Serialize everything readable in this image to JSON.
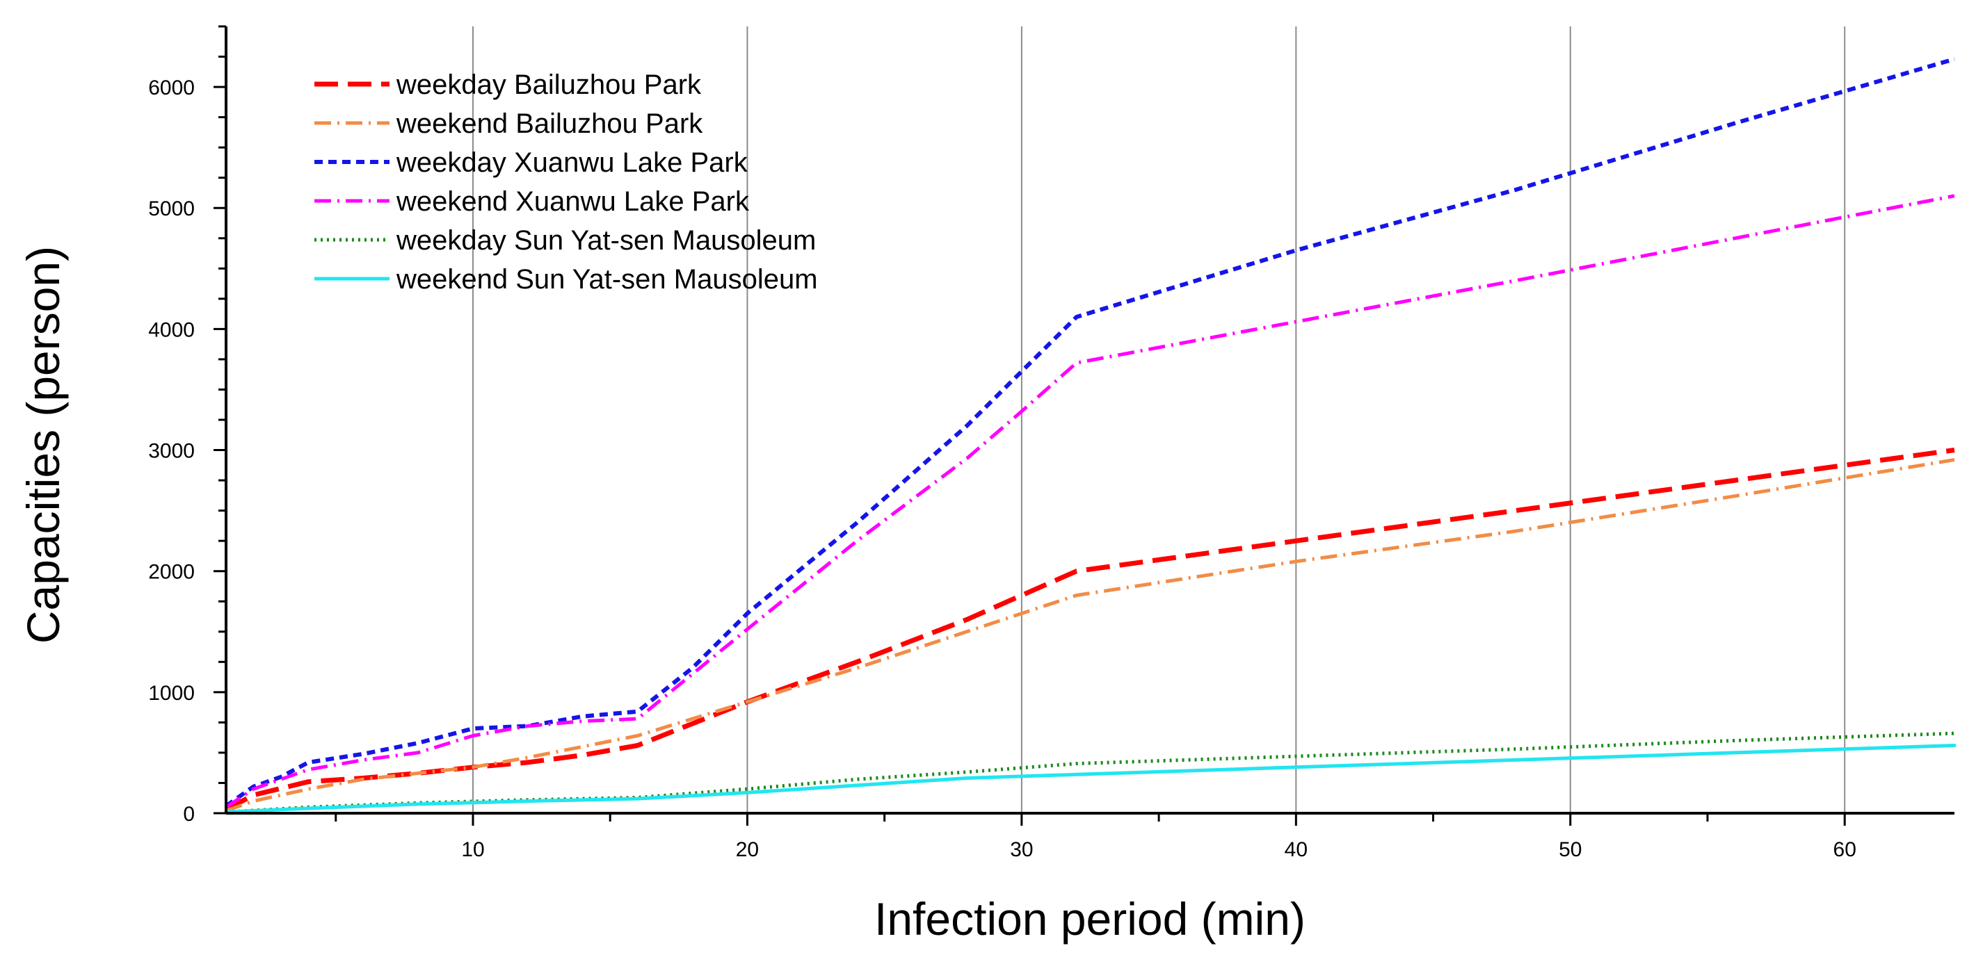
{
  "chart_data": {
    "type": "line",
    "title": "",
    "xlabel": "Infection period (min)",
    "ylabel": "Capacities (person)",
    "xlim": [
      1,
      64
    ],
    "ylim": [
      0,
      6500
    ],
    "xticks": [
      10,
      20,
      30,
      40,
      50,
      60
    ],
    "yticks": [
      0,
      1000,
      2000,
      3000,
      4000,
      5000,
      6000
    ],
    "grid": "vertical",
    "legend_position": "top-left",
    "series": [
      {
        "name": "weekday Bailuzhou Park",
        "color": "#ff0000",
        "style": "dash",
        "x": [
          1,
          2,
          4,
          6,
          8,
          10,
          12,
          14,
          16,
          18,
          20,
          24,
          28,
          30,
          32,
          40,
          48,
          56,
          64
        ],
        "y": [
          30,
          150,
          260,
          290,
          330,
          380,
          420,
          480,
          560,
          740,
          920,
          1250,
          1600,
          1800,
          2000,
          2250,
          2500,
          2750,
          3000
        ]
      },
      {
        "name": "weekend Bailuzhou Park",
        "color": "#f28c45",
        "style": "dashdot",
        "x": [
          1,
          2,
          4,
          6,
          8,
          10,
          12,
          16,
          20,
          24,
          28,
          32,
          40,
          48,
          56,
          64
        ],
        "y": [
          20,
          100,
          200,
          280,
          330,
          380,
          460,
          640,
          920,
          1200,
          1500,
          1800,
          2080,
          2330,
          2620,
          2920
        ]
      },
      {
        "name": "weekday Xuanwu Lake Park",
        "color": "#1515e8",
        "style": "shortdash",
        "x": [
          1,
          2,
          3,
          4,
          6,
          8,
          10,
          12,
          14,
          16,
          18,
          20,
          24,
          28,
          30,
          32,
          40,
          48,
          56,
          64
        ],
        "y": [
          60,
          220,
          300,
          420,
          490,
          580,
          700,
          720,
          800,
          840,
          1200,
          1650,
          2400,
          3200,
          3650,
          4100,
          4650,
          5150,
          5700,
          6230
        ]
      },
      {
        "name": "weekend Xuanwu Lake Park",
        "color": "#ff00ff",
        "style": "dashdot",
        "x": [
          1,
          2,
          3,
          4,
          6,
          8,
          10,
          12,
          14,
          16,
          18,
          20,
          24,
          28,
          30,
          32,
          40,
          48,
          56,
          64
        ],
        "y": [
          50,
          200,
          280,
          360,
          440,
          500,
          640,
          720,
          760,
          780,
          1150,
          1520,
          2250,
          2930,
          3320,
          3720,
          4060,
          4400,
          4750,
          5100
        ]
      },
      {
        "name": "weekday Sun Yat-sen Mausoleum",
        "color": "#1a8a1a",
        "style": "dot",
        "x": [
          1,
          4,
          8,
          12,
          16,
          20,
          24,
          28,
          32,
          40,
          48,
          56,
          64
        ],
        "y": [
          10,
          50,
          85,
          110,
          130,
          200,
          280,
          340,
          410,
          470,
          530,
          600,
          660
        ]
      },
      {
        "name": "weekend Sun Yat-sen Mausoleum",
        "color": "#22e5f0",
        "style": "solid",
        "x": [
          1,
          4,
          8,
          12,
          16,
          20,
          24,
          28,
          32,
          40,
          48,
          56,
          64
        ],
        "y": [
          10,
          40,
          75,
          100,
          120,
          170,
          230,
          290,
          320,
          380,
          440,
          500,
          560
        ]
      }
    ]
  }
}
